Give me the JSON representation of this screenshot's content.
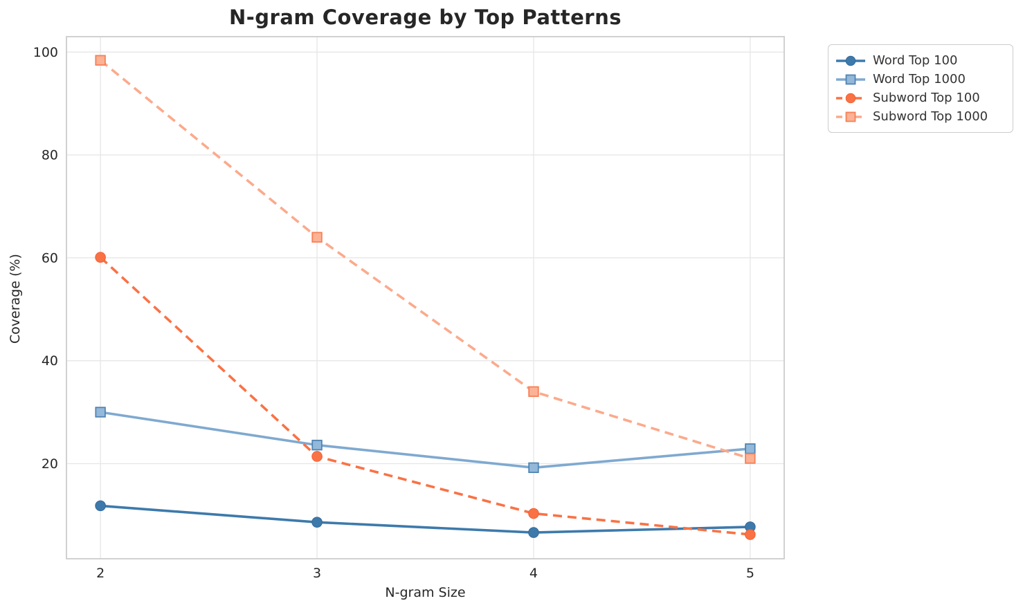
{
  "title": "N-gram Coverage by Top Patterns",
  "style": {
    "background": "#ffffff",
    "grid_color": "#e7e7e7",
    "spine_color": "#cccccc",
    "text_color": "#262626",
    "legend_border": "#cccccc",
    "legend_text_color": "#333333"
  },
  "chart_data": {
    "type": "line",
    "title": "N-gram Coverage by Top Patterns",
    "xlabel": "N-gram Size",
    "ylabel": "Coverage (%)",
    "x": [
      2,
      3,
      4,
      5
    ],
    "xticks": [
      2,
      3,
      4,
      5
    ],
    "yticks": [
      20,
      40,
      60,
      80,
      100
    ],
    "xlim": [
      1.843,
      5.157
    ],
    "ylim": [
      1.5,
      103.0
    ],
    "grid": true,
    "legend_position": "outside upper right",
    "series": [
      {
        "name": "Word Top 100",
        "color": "#3d7aab",
        "marker": "circle",
        "marker_fill": "#3d7aab",
        "marker_edge": "#35689a",
        "linestyle": "solid",
        "values": [
          11.8,
          8.6,
          6.6,
          7.7
        ]
      },
      {
        "name": "Word Top 1000",
        "color": "#7fa9d0",
        "marker": "square",
        "marker_fill": "#93b8d9",
        "marker_edge": "#4f84b2",
        "linestyle": "solid",
        "values": [
          30.0,
          23.6,
          19.2,
          22.9
        ]
      },
      {
        "name": "Subword Top 100",
        "color": "#f97245",
        "marker": "circle",
        "marker_fill": "#f97245",
        "marker_edge": "#f45f31",
        "linestyle": "dashed",
        "values": [
          60.1,
          21.4,
          10.3,
          6.2
        ]
      },
      {
        "name": "Subword Top 1000",
        "color": "#fbaa8c",
        "marker": "square",
        "marker_fill": "#fcb295",
        "marker_edge": "#f87f55",
        "linestyle": "dashed",
        "values": [
          98.4,
          64.0,
          34.0,
          21.0
        ]
      }
    ]
  }
}
